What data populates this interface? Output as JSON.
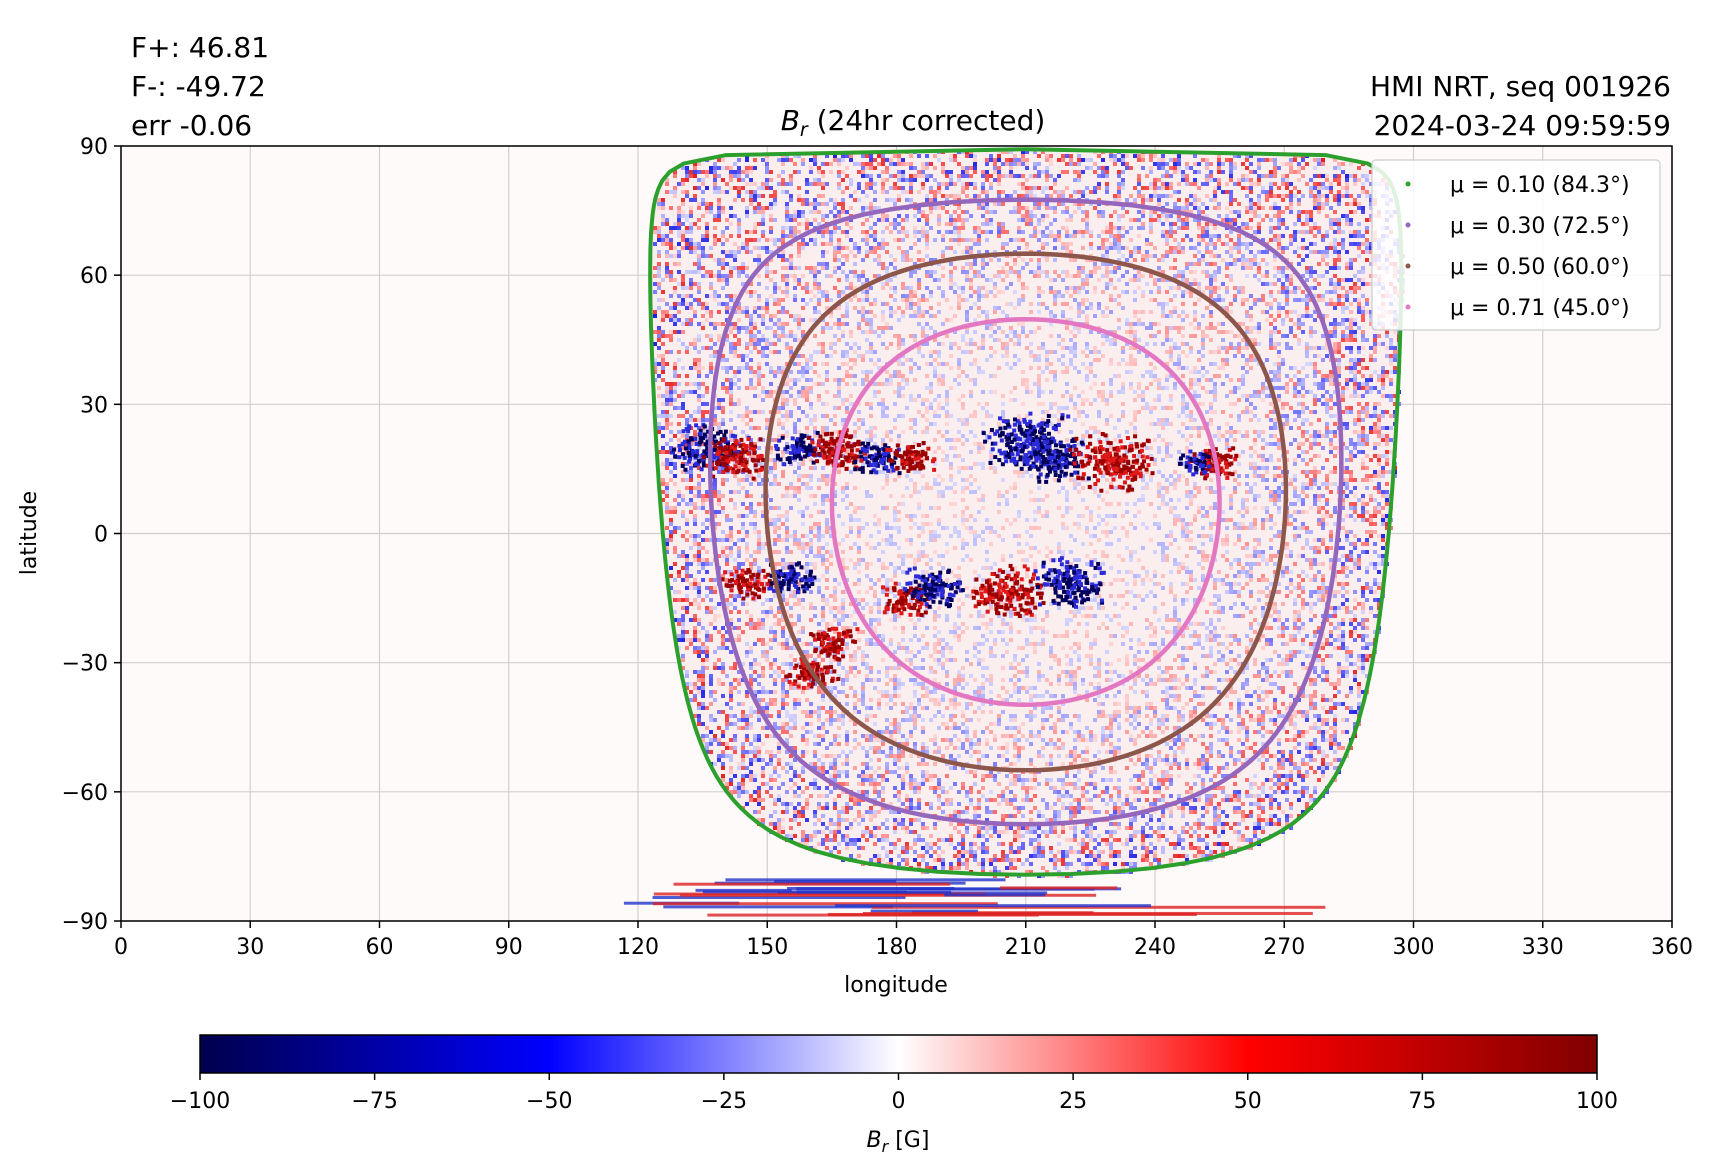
{
  "header": {
    "flux_pos": "F+: 46.81",
    "flux_neg": "F-: -49.72",
    "err": "err -0.06",
    "source": "HMI NRT, seq 001926",
    "datetime": "2024-03-24 09:59:59"
  },
  "chart_data": {
    "type": "heatmap",
    "title_main": "B",
    "title_sub": "r",
    "title_rest": " (24hr corrected)",
    "xlabel": "longitude",
    "ylabel": "latitude",
    "xlim": [
      0,
      360
    ],
    "ylim": [
      -90,
      90
    ],
    "xticks": [
      0,
      30,
      60,
      90,
      120,
      150,
      180,
      210,
      240,
      270,
      300,
      330,
      360
    ],
    "xtick_labels": [
      "0",
      "30",
      "60",
      "90",
      "120",
      "150",
      "180",
      "210",
      "240",
      "270",
      "300",
      "330",
      "360"
    ],
    "yticks": [
      90,
      60,
      30,
      0,
      -30,
      -60,
      -90
    ],
    "ytick_labels": [
      "90",
      "60",
      "30",
      "0",
      "−30",
      "−60",
      "−90"
    ],
    "grid": true,
    "disk_center": {
      "lon": 210,
      "lat": 5
    },
    "contours": [
      {
        "label": "μ = 0.10 (84.3°)",
        "mu": 0.1,
        "color": "#2ca02c"
      },
      {
        "label": "μ = 0.30 (72.5°)",
        "mu": 0.3,
        "color": "#9467bd"
      },
      {
        "label": "μ = 0.50 (60.0°)",
        "mu": 0.5,
        "color": "#8c564b"
      },
      {
        "label": "μ = 0.71 (45.0°)",
        "mu": 0.71,
        "color": "#e377c2"
      }
    ],
    "legend_position": "top-right",
    "active_regions": [
      {
        "lon": 136,
        "lat": 20,
        "sign": "neg",
        "size": 4
      },
      {
        "lon": 142,
        "lat": 18,
        "sign": "pos",
        "size": 3
      },
      {
        "lon": 157,
        "lat": 20,
        "sign": "neg",
        "size": 2
      },
      {
        "lon": 166,
        "lat": 20,
        "sign": "pos",
        "size": 3
      },
      {
        "lon": 175,
        "lat": 18,
        "sign": "neg",
        "size": 2
      },
      {
        "lon": 183,
        "lat": 18,
        "sign": "pos",
        "size": 2
      },
      {
        "lon": 210,
        "lat": 22,
        "sign": "neg",
        "size": 5
      },
      {
        "lon": 216,
        "lat": 18,
        "sign": "neg",
        "size": 4
      },
      {
        "lon": 230,
        "lat": 17,
        "sign": "pos",
        "size": 5
      },
      {
        "lon": 253,
        "lat": 17,
        "sign": "pos",
        "size": 2
      },
      {
        "lon": 249,
        "lat": 17,
        "sign": "neg",
        "size": 1
      },
      {
        "lon": 145,
        "lat": -11,
        "sign": "pos",
        "size": 2
      },
      {
        "lon": 155,
        "lat": -10,
        "sign": "neg",
        "size": 2
      },
      {
        "lon": 182,
        "lat": -15,
        "sign": "pos",
        "size": 2
      },
      {
        "lon": 188,
        "lat": -12,
        "sign": "neg",
        "size": 3
      },
      {
        "lon": 205,
        "lat": -13,
        "sign": "pos",
        "size": 4
      },
      {
        "lon": 220,
        "lat": -11,
        "sign": "neg",
        "size": 4
      },
      {
        "lon": 160,
        "lat": -32,
        "sign": "pos",
        "size": 2
      },
      {
        "lon": 165,
        "lat": -25,
        "sign": "pos",
        "size": 2
      }
    ],
    "colorbar": {
      "label_main": "B",
      "label_sub": "r",
      "label_rest": " [G]",
      "range": [
        -100,
        100
      ],
      "ticks": [
        -100,
        -75,
        -50,
        -25,
        0,
        25,
        50,
        75,
        100
      ],
      "tick_labels": [
        "−100",
        "−75",
        "−50",
        "−25",
        "0",
        "25",
        "50",
        "75",
        "100"
      ],
      "colormap": "seismic",
      "colors": [
        "#00004d",
        "#0000ff",
        "#ffffff",
        "#ff0000",
        "#800000"
      ]
    }
  }
}
